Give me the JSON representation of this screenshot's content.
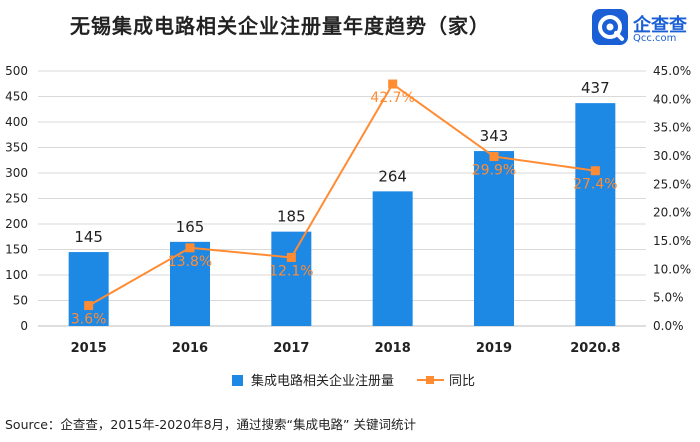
{
  "title": "无锡集成电路相关企业注册量年度趋势（家）",
  "logo": {
    "name": "企查查",
    "domain": "Qcc.com"
  },
  "source": "Source：企查查，2015年-2020年8月，通过搜索“集成电路” 关键词统计",
  "colors": {
    "bar": "#1e88e5",
    "line": "#ff8c33",
    "text": "#222222",
    "grid": "#d9d9d9",
    "logo": "#1a5fd6"
  },
  "chart_data": {
    "type": "bar",
    "categories": [
      "2015",
      "2016",
      "2017",
      "2018",
      "2019",
      "2020.8"
    ],
    "series": [
      {
        "name": "集成电路相关企业注册量",
        "type": "bar",
        "axis": "left",
        "values": [
          145,
          165,
          185,
          264,
          343,
          437
        ],
        "value_labels": [
          "145",
          "165",
          "185",
          "264",
          "343",
          "437"
        ]
      },
      {
        "name": "同比",
        "type": "line",
        "axis": "right",
        "values": [
          3.6,
          13.8,
          12.1,
          42.7,
          29.9,
          27.4
        ],
        "value_labels": [
          "3.6%",
          "13.8%",
          "12.1%",
          "42.7%",
          "29.9%",
          "27.4%"
        ]
      }
    ],
    "y_left": {
      "min": 0,
      "max": 500,
      "step": 50,
      "ticks": [
        "0",
        "50",
        "100",
        "150",
        "200",
        "250",
        "300",
        "350",
        "400",
        "450",
        "500"
      ]
    },
    "y_right": {
      "min": 0,
      "max": 45,
      "step": 5,
      "ticks": [
        "0.0%",
        "5.0%",
        "10.0%",
        "15.0%",
        "20.0%",
        "25.0%",
        "30.0%",
        "35.0%",
        "40.0%",
        "45.0%"
      ]
    },
    "legend": {
      "position": "bottom",
      "items": [
        "集成电路相关企业注册量",
        "同比"
      ]
    },
    "grid": true
  }
}
